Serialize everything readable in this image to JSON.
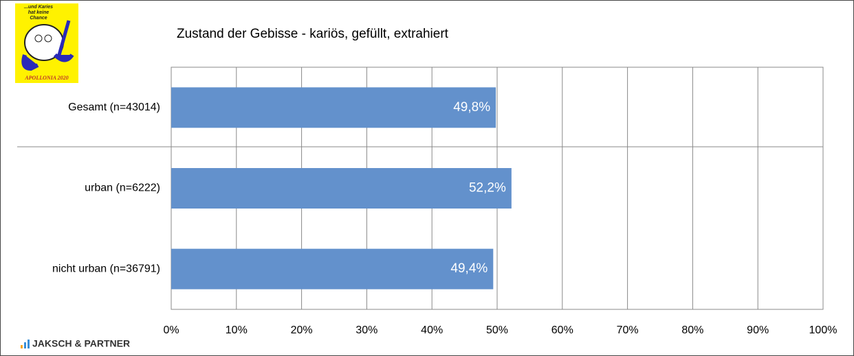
{
  "chart_data": {
    "type": "hbar",
    "title": "Zustand der Gebisse - kariös, gefüllt, extrahiert",
    "categories": [
      "Gesamt (n=43014)",
      "urban (n=6222)",
      "nicht urban (n=36791)"
    ],
    "values": [
      49.8,
      52.2,
      49.4
    ],
    "value_labels": [
      "49,8%",
      "52,2%",
      "49,4%"
    ],
    "color": "#6391cc",
    "xlim": [
      0,
      100
    ],
    "xticks": [
      {
        "value": 0,
        "label": "0%"
      },
      {
        "value": 10,
        "label": "10%"
      },
      {
        "value": 20,
        "label": "20%"
      },
      {
        "value": 30,
        "label": "30%"
      },
      {
        "value": 40,
        "label": "40%"
      },
      {
        "value": 50,
        "label": "50%"
      },
      {
        "value": 60,
        "label": "60%"
      },
      {
        "value": 70,
        "label": "70%"
      },
      {
        "value": 80,
        "label": "80%"
      },
      {
        "value": 90,
        "label": "90%"
      },
      {
        "value": 100,
        "label": "100%"
      }
    ],
    "grid": true
  },
  "logo_top": {
    "slogan_1": "...und Karies",
    "slogan_2": "hat keine",
    "slogan_3": "Chance",
    "name": "APOLLONIA 2020"
  },
  "logo_bottom": {
    "name": "JAKSCH & PARTNER"
  }
}
